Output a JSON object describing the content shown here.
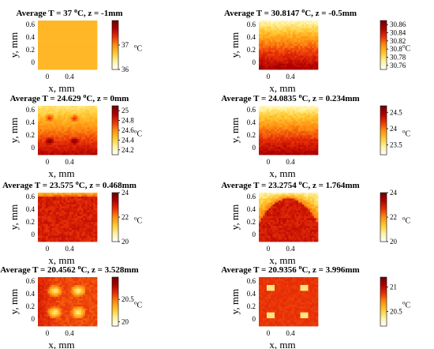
{
  "figure": {
    "colormap": [
      "#ffffff",
      "#fff2a0",
      "#ffc830",
      "#ff8c10",
      "#e83008",
      "#b00000",
      "#6e0000"
    ]
  },
  "chart_data": [
    {
      "type": "heatmap",
      "title": {
        "prefix": "Average T = 37 ",
        "sup": "o",
        "suffix": "C, z = -1mm"
      },
      "average_T": 37,
      "z_mm": -1,
      "xlabel": "x, mm",
      "ylabel": "y, mm",
      "xticks": [
        "0",
        "0.4"
      ],
      "yticks": [
        "0.6",
        "0.4",
        "0.2",
        "0"
      ],
      "colorbar": {
        "ticks": [
          "37",
          "36"
        ],
        "unit_base": "C",
        "unit_sup": "o",
        "range": [
          36,
          38
        ]
      },
      "pattern": "uniform"
    },
    {
      "type": "heatmap",
      "title": {
        "prefix": "Average T = 30.8147 ",
        "sup": "o",
        "suffix": "C, z = -0.5mm"
      },
      "average_T": 30.8147,
      "z_mm": -0.5,
      "xlabel": "x, mm",
      "ylabel": "y, mm",
      "xticks": [
        "0",
        "0.4"
      ],
      "yticks": [
        "0.6",
        "0.4",
        "0.2",
        "0"
      ],
      "colorbar": {
        "ticks": [
          "30.86",
          "30.84",
          "30.82",
          "30.8",
          "30.78",
          "30.76"
        ],
        "unit_base": "C",
        "unit_sup": "o",
        "range": [
          30.75,
          30.87
        ]
      },
      "pattern": "vertical_gradient"
    },
    {
      "type": "heatmap",
      "title": {
        "prefix": "Average T = 24.629 ",
        "sup": "o",
        "suffix": "C, z = 0mm"
      },
      "average_T": 24.629,
      "z_mm": 0,
      "xlabel": "x, mm",
      "ylabel": "y, mm",
      "xticks": [
        "0",
        "0.4"
      ],
      "yticks": [
        "0.6",
        "0.4",
        "0.2",
        "0"
      ],
      "colorbar": {
        "ticks": [
          "25",
          "24.8",
          "24.6",
          "24.4",
          "24.2"
        ],
        "unit_base": "C",
        "unit_sup": "o",
        "range": [
          24.1,
          25.1
        ]
      },
      "pattern": "gradient_with_spots"
    },
    {
      "type": "heatmap",
      "title": {
        "prefix": "Average T = 24.0835 ",
        "sup": "o",
        "suffix": "C, z = 0.234mm"
      },
      "average_T": 24.0835,
      "z_mm": 0.234,
      "xlabel": "x, mm",
      "ylabel": "y, mm",
      "xticks": [
        "0",
        "0.4"
      ],
      "yticks": [
        "0.6",
        "0.4",
        "0.2",
        "0"
      ],
      "colorbar": {
        "ticks": [
          "24.5",
          "24",
          "23.5"
        ],
        "unit_base": "C",
        "unit_sup": "o",
        "range": [
          23.2,
          24.7
        ]
      },
      "pattern": "vertical_gradient"
    },
    {
      "type": "heatmap",
      "title": {
        "prefix": "Average T = 23.575 ",
        "sup": "o",
        "suffix": "C, z = 0.468mm"
      },
      "average_T": 23.575,
      "z_mm": 0.468,
      "xlabel": "x, mm",
      "ylabel": "y, mm",
      "xticks": [
        "0",
        "0.4"
      ],
      "yticks": [
        "0.6",
        "0.4",
        "0.2",
        "0"
      ],
      "colorbar": {
        "ticks": [
          "24",
          "22",
          "20"
        ],
        "unit_base": "C",
        "unit_sup": "o",
        "range": [
          20,
          24
        ]
      },
      "pattern": "mostly_hot_top_band"
    },
    {
      "type": "heatmap",
      "title": {
        "prefix": "Average T = 23.2754 ",
        "sup": "o",
        "suffix": "C, z = 1.764mm"
      },
      "average_T": 23.2754,
      "z_mm": 1.764,
      "xlabel": "x, mm",
      "ylabel": "y, mm",
      "xticks": [
        "0",
        "0.4"
      ],
      "yticks": [
        "0.6",
        "0.4",
        "0.2",
        "0"
      ],
      "colorbar": {
        "ticks": [
          "24",
          "22",
          "20"
        ],
        "unit_base": "C",
        "unit_sup": "o",
        "range": [
          20,
          24
        ]
      },
      "pattern": "dip_center_top"
    },
    {
      "type": "heatmap",
      "title": {
        "prefix": "Average T = 20.4562 ",
        "sup": "o",
        "suffix": "C, z = 3.528mm"
      },
      "average_T": 20.4562,
      "z_mm": 3.528,
      "xlabel": "x, mm",
      "ylabel": "y, mm",
      "xticks": [
        "0",
        "0.4"
      ],
      "yticks": [
        "0.6",
        "0.4",
        "0.2",
        "0"
      ],
      "colorbar": {
        "ticks": [
          "20.5",
          "20"
        ],
        "unit_base": "C",
        "unit_sup": "o",
        "range": [
          19.9,
          21.0
        ]
      },
      "pattern": "four_hot_spots_dark_left"
    },
    {
      "type": "heatmap",
      "title": {
        "prefix": "Average T = 20.9356 ",
        "sup": "o",
        "suffix": "C, z = 3.996mm"
      },
      "average_T": 20.9356,
      "z_mm": 3.996,
      "xlabel": "x, mm",
      "ylabel": "y, mm",
      "xticks": [
        "0",
        "0.4"
      ],
      "yticks": [
        "0.6",
        "0.4",
        "0.2",
        "0"
      ],
      "colorbar": {
        "ticks": [
          "21",
          "20.5"
        ],
        "unit_base": "C",
        "unit_sup": "o",
        "range": [
          20.2,
          21.2
        ]
      },
      "pattern": "four_square_spots"
    }
  ]
}
